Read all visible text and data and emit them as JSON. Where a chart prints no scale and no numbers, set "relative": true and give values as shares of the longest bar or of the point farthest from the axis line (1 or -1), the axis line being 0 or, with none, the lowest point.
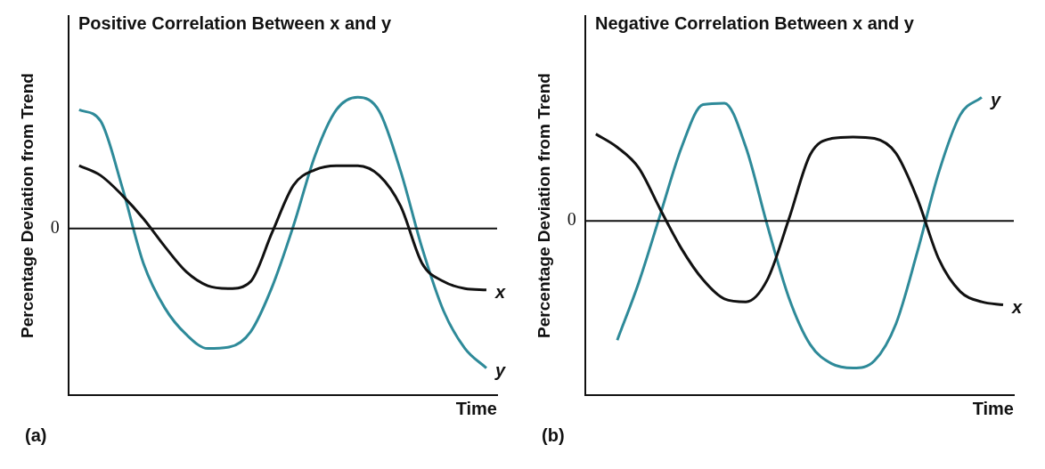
{
  "chart_data": [
    {
      "type": "line",
      "title": "Positive Correlation Between x and y",
      "xlabel": "Time",
      "ylabel": "Percentage Deviation from Trend",
      "relative": true,
      "legend": false,
      "grid": false,
      "marker": "none",
      "annotations": [
        "(a)"
      ],
      "categories": [
        null,
        null,
        null,
        null,
        null,
        null,
        null,
        null,
        null,
        null,
        null,
        null,
        null,
        null,
        null,
        null,
        null,
        null,
        null,
        null
      ],
      "ref_lines": [
        {
          "axis": "y",
          "value": 0,
          "label": "0",
          "color": "#111111"
        }
      ],
      "series": [
        {
          "name": "x",
          "color": "#111111",
          "values": [
            0.45,
            0.38,
            0.24,
            0.07,
            -0.13,
            -0.31,
            -0.41,
            -0.43,
            -0.38,
            -0.03,
            0.31,
            0.42,
            0.45,
            0.45,
            0.38,
            0.16,
            -0.25,
            -0.38,
            -0.43,
            -0.44
          ]
        },
        {
          "name": "y",
          "color": "#2e8a99",
          "values": [
            0.85,
            0.77,
            0.3,
            -0.25,
            -0.57,
            -0.76,
            -0.86,
            -0.85,
            -0.74,
            -0.42,
            0.02,
            0.52,
            0.85,
            0.94,
            0.84,
            0.41,
            -0.14,
            -0.59,
            -0.86,
            -1
          ]
        }
      ]
    },
    {
      "type": "line",
      "title": "Negative Correlation Between x and y",
      "xlabel": "Time",
      "ylabel": "Percentage Deviation from Trend",
      "relative": true,
      "legend": false,
      "grid": false,
      "marker": "none",
      "annotations": [
        "(b)"
      ],
      "categories": [
        null,
        null,
        null,
        null,
        null,
        null,
        null,
        null,
        null,
        null,
        null,
        null,
        null,
        null,
        null,
        null,
        null,
        null,
        null,
        null
      ],
      "ref_lines": [
        {
          "axis": "y",
          "value": 0,
          "label": "0",
          "color": "#111111"
        }
      ],
      "series": [
        {
          "name": "x",
          "color": "#111111",
          "values": [
            0.59,
            0.5,
            0.36,
            0.08,
            -0.19,
            -0.4,
            -0.53,
            -0.55,
            -0.4,
            0.01,
            0.45,
            0.56,
            0.57,
            0.56,
            0.46,
            0.15,
            -0.26,
            -0.48,
            -0.55,
            -0.57
          ]
        },
        {
          "name": "y",
          "color": "#2e8a99",
          "values": [
            null,
            -0.81,
            -0.42,
            0.04,
            0.5,
            0.79,
            0.8,
            0.5,
            -0.03,
            -0.52,
            -0.84,
            -0.97,
            -1,
            -0.95,
            -0.7,
            -0.21,
            0.33,
            0.72,
            0.84,
            null
          ]
        }
      ]
    }
  ]
}
